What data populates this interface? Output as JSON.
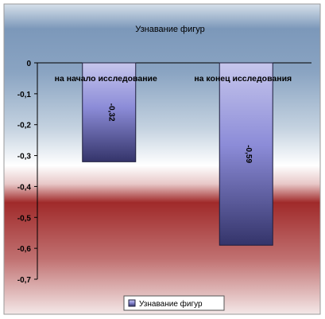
{
  "chart_data": {
    "type": "bar",
    "title": "Узнавание фигур",
    "categories": [
      "на начало исследование",
      "на конец исследования"
    ],
    "series": [
      {
        "name": "Узнавание фигур",
        "values": [
          -0.32,
          -0.59
        ]
      }
    ],
    "data_labels": [
      "-0,32",
      "-0,59"
    ],
    "y_ticks": [
      "0",
      "-0,1",
      "-0,2",
      "-0,3",
      "-0,4",
      "-0,5",
      "-0,6",
      "-0,7"
    ],
    "ylim": [
      -0.7,
      0
    ],
    "xlabel": "",
    "ylabel": "",
    "grid": false,
    "legend_position": "bottom",
    "colors": {
      "bar_top": "#c6c6ec",
      "bar_mid": "#8c8cd8",
      "bar_bottom": "#34346a",
      "bar_border": "#1e1e3c",
      "bg_top": "#7090b4",
      "bg_white": "#ffffff",
      "bg_red": "#a02a2a"
    }
  }
}
